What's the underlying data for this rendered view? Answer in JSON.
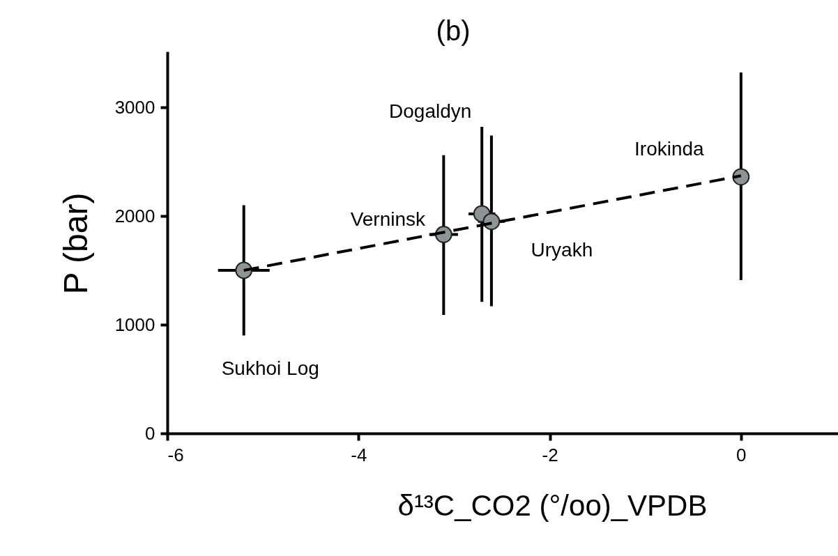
{
  "chart_data": {
    "type": "scatter",
    "title": "(b)",
    "xlabel": "δ¹³C_CO2 (°/oo)_VPDB",
    "ylabel": "P (bar)",
    "xlim": [
      -6,
      1
    ],
    "xticks": [
      -6,
      -4,
      -2,
      0
    ],
    "ylim": [
      0,
      3500
    ],
    "yticks": [
      0,
      1000,
      2000,
      3000
    ],
    "grid": false,
    "marker": "circle",
    "series": [
      {
        "color": "#8c9496",
        "x": [
          -5.2,
          -3.11,
          -2.71,
          -2.61,
          0
        ],
        "values": [
          1500,
          1830,
          2020,
          1950,
          2360
        ],
        "errors": [
          [
            900,
            2100
          ],
          [
            1090,
            2560
          ],
          [
            1210,
            2820
          ],
          [
            1170,
            2740
          ],
          [
            1410,
            3320
          ]
        ],
        "xerrors": [
          0.27,
          0.15,
          0.14,
          0.14,
          null
        ]
      },
      {
        "type": "line",
        "marker": "none",
        "color": "#000000",
        "line_style": "dashed",
        "x": [
          -5.2,
          0
        ],
        "values": [
          1500,
          2370
        ]
      }
    ],
    "annotations": [
      {
        "text": "Sukhoi Log",
        "x": -5.2,
        "y": 900
      },
      {
        "text": "Verninsk",
        "x": -3.11,
        "y": 1830
      },
      {
        "text": "Dogaldyn",
        "x": -2.71,
        "y": 2820
      },
      {
        "text": "Uryakh",
        "x": -2.61,
        "y": 1950
      },
      {
        "text": "Irokinda",
        "x": 0,
        "y": 2360
      }
    ]
  }
}
